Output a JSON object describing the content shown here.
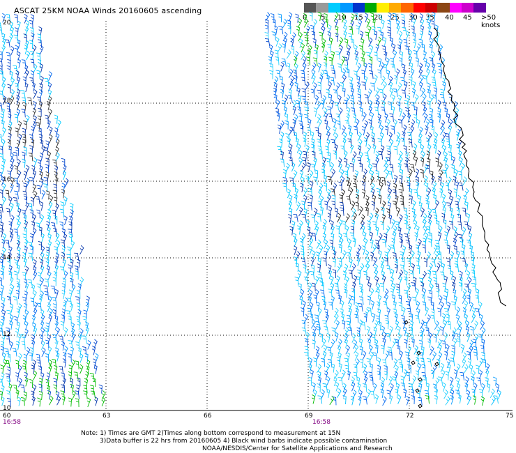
{
  "title": "ASCAT 25KM NOAA Winds 20160605 ascending",
  "colorbar": {
    "colors": [
      "#555555",
      "#999999",
      "#00ccff",
      "#0099ff",
      "#0033cc",
      "#00aa00",
      "#ffee00",
      "#ffaa00",
      "#ff6600",
      "#ff0000",
      "#cc0000",
      "#8b4513",
      "#ff00ff",
      "#cc00cc",
      "#6600aa"
    ],
    "labels": [
      "0",
      "5",
      "10",
      "15",
      "20",
      "25",
      "30",
      "35",
      "40",
      "45",
      ">50 knots"
    ]
  },
  "lat_labels": [
    "20",
    "18",
    "16",
    "14",
    "12",
    "10"
  ],
  "lon_labels": [
    "60",
    "63",
    "66",
    "69",
    "72",
    "75"
  ],
  "times": [
    "16:58",
    "16:58"
  ],
  "notes": {
    "line1": "Note: 1) Times are GMT 2)Times along bottom correspond to measurement at 15N",
    "line2": "3)Data buffer is 22 hrs from 20160605 4) Black wind barbs indicate possible contamination",
    "line3": "NOAA/NESDIS/Center for Satellite Applications and Research"
  },
  "map": {
    "grid_style": "dotted",
    "swaths": [
      "west",
      "east"
    ],
    "coastline": "east edge"
  }
}
